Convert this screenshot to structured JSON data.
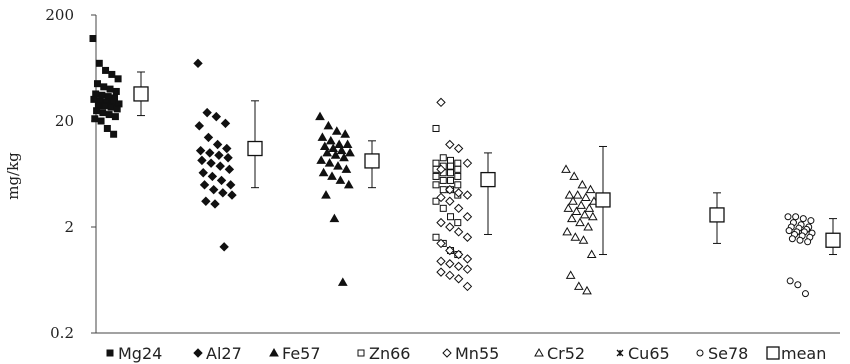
{
  "chart_data": {
    "type": "scatter",
    "title": "",
    "xlabel": "",
    "ylabel": "mg/kg",
    "yscale": "log",
    "ylim": [
      0.2,
      200
    ],
    "yticks": [
      {
        "value": 200,
        "label": "200"
      },
      {
        "value": 20,
        "label": "20"
      },
      {
        "value": 2,
        "label": "2"
      },
      {
        "value": 0.2,
        "label": "0.2"
      }
    ],
    "grid": false,
    "legend_position": "bottom",
    "categories": [
      "Mg24",
      "Al27",
      "Fe57",
      "Zn66",
      "Mn55",
      "Cr52",
      "Cu65",
      "Se78"
    ],
    "series": [
      {
        "name": "Mg24",
        "marker": "square-filled",
        "values": [
          120,
          70,
          60,
          55,
          50,
          45,
          42,
          40,
          38,
          36,
          35,
          34,
          33,
          32,
          31,
          30,
          30,
          29,
          28,
          28,
          27,
          26,
          25,
          24,
          23,
          22,
          21,
          20,
          17,
          15
        ]
      },
      {
        "name": "Al27",
        "marker": "diamond-filled",
        "values": [
          70,
          24,
          22,
          19,
          18,
          14,
          12,
          11,
          10.5,
          10,
          9.5,
          9,
          8.5,
          8,
          7.5,
          7,
          6.5,
          6,
          5.5,
          5,
          5,
          4.5,
          4.2,
          4,
          3.5,
          3.3,
          1.3
        ]
      },
      {
        "name": "Fe57",
        "marker": "triangle-filled",
        "values": [
          22,
          18,
          16,
          15,
          14,
          13,
          12,
          12,
          11.5,
          11,
          10.5,
          10,
          10,
          9.5,
          9,
          8.5,
          8,
          7.5,
          7,
          6.5,
          6,
          5.5,
          5,
          4,
          2.4,
          0.6
        ]
      },
      {
        "name": "Zn66",
        "marker": "square-open",
        "values": [
          17,
          9,
          8.5,
          8,
          8,
          7.5,
          7.5,
          7,
          7,
          6.5,
          6.5,
          6,
          6,
          5.5,
          5.5,
          5,
          5,
          4.5,
          4.5,
          4,
          3.5,
          3,
          2.5,
          2.2,
          1.6,
          1.4,
          1.2,
          1.1
        ]
      },
      {
        "name": "Mn55",
        "marker": "diamond-open",
        "values": [
          30,
          12,
          11,
          8,
          7,
          4.5,
          4.2,
          4,
          3.8,
          3.5,
          3,
          2.5,
          2.2,
          2,
          1.8,
          1.6,
          1.4,
          1.2,
          1.1,
          1.0,
          0.95,
          0.9,
          0.85,
          0.8,
          0.75,
          0.7,
          0.65,
          0.55
        ]
      },
      {
        "name": "Cr52",
        "marker": "triangle-open",
        "values": [
          7,
          6,
          5,
          4.5,
          4,
          4,
          3.8,
          3.5,
          3.5,
          3.2,
          3,
          3,
          2.8,
          2.6,
          2.5,
          2.4,
          2.2,
          2,
          1.8,
          1.6,
          1.5,
          1.1,
          0.7,
          0.55,
          0.5
        ]
      },
      {
        "name": "Cu65",
        "marker": "cross",
        "values": []
      },
      {
        "name": "Se78",
        "marker": "circle-open",
        "values": [
          2.5,
          2.5,
          2.4,
          2.3,
          2.2,
          2.1,
          2.0,
          2.0,
          1.95,
          1.9,
          1.85,
          1.8,
          1.8,
          1.75,
          1.7,
          1.65,
          1.6,
          1.55,
          1.5,
          1.45,
          0.62,
          0.57,
          0.47
        ]
      }
    ],
    "mean": {
      "name": "mean",
      "marker": "square-open-large",
      "values": [
        36,
        11,
        8.4,
        5.6,
        3.6,
        2.6,
        1.5
      ],
      "error_high": [
        58,
        31,
        13,
        10,
        11.5,
        4.2,
        2.4
      ],
      "error_low": [
        22.5,
        4.7,
        4.7,
        1.7,
        1.1,
        1.4,
        1.1
      ],
      "positions": [
        "Mg24",
        "Al27",
        "Fe57",
        "Zn66",
        "Mn55",
        "Cr52",
        "Se78"
      ]
    },
    "legend": [
      "Mg24",
      "Al27",
      "Fe57",
      "Zn66",
      "Mn55",
      "Cr52",
      "Cu65",
      "Se78",
      "mean"
    ]
  }
}
